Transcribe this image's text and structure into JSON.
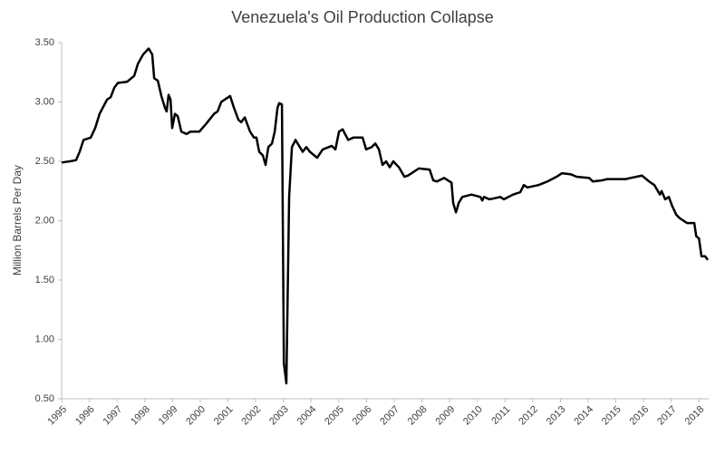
{
  "chart_data": {
    "type": "line",
    "title": "Venezuela's Oil Production Collapse",
    "y_label": "Million Barrels Per Day",
    "series": [
      {
        "color": "#000000",
        "x": [
          1995.0,
          1995.3,
          1995.52,
          1995.65,
          1995.79,
          1996.05,
          1996.21,
          1996.37,
          1996.64,
          1996.77,
          1996.9,
          1997.03,
          1997.36,
          1997.62,
          1997.75,
          1997.94,
          1998.14,
          1998.27,
          1998.34,
          1998.47,
          1998.6,
          1998.73,
          1998.79,
          1998.86,
          1998.93,
          1998.99,
          1999.09,
          1999.19,
          1999.32,
          1999.51,
          1999.65,
          1999.97,
          2000.23,
          2000.5,
          2000.63,
          2000.76,
          2000.95,
          2001.08,
          2001.22,
          2001.38,
          2001.48,
          2001.61,
          2001.8,
          2001.94,
          2002.03,
          2002.13,
          2002.26,
          2002.36,
          2002.46,
          2002.59,
          2002.69,
          2002.79,
          2002.85,
          2002.95,
          2003.02,
          2003.11,
          2003.21,
          2003.31,
          2003.44,
          2003.7,
          2003.83,
          2003.96,
          2004.22,
          2004.42,
          2004.75,
          2004.88,
          2005.01,
          2005.14,
          2005.34,
          2005.53,
          2005.86,
          2005.99,
          2006.19,
          2006.32,
          2006.45,
          2006.58,
          2006.71,
          2006.84,
          2006.97,
          2007.17,
          2007.37,
          2007.5,
          2007.89,
          2008.28,
          2008.41,
          2008.54,
          2008.8,
          2009.07,
          2009.13,
          2009.23,
          2009.33,
          2009.46,
          2009.79,
          2010.11,
          2010.18,
          2010.24,
          2010.44,
          2010.83,
          2010.96,
          2011.29,
          2011.55,
          2011.68,
          2011.81,
          2012.21,
          2012.53,
          2012.86,
          2013.06,
          2013.38,
          2013.58,
          2014.04,
          2014.17,
          2014.5,
          2014.69,
          2015.35,
          2015.54,
          2015.94,
          2016.2,
          2016.39,
          2016.59,
          2016.65,
          2016.78,
          2016.91,
          2017.04,
          2017.18,
          2017.31,
          2017.57,
          2017.83,
          2017.9,
          2018.0,
          2018.09,
          2018.22,
          2018.32
        ],
        "values": [
          2.49,
          2.5,
          2.51,
          2.58,
          2.68,
          2.7,
          2.78,
          2.9,
          3.02,
          3.04,
          3.12,
          3.16,
          3.17,
          3.22,
          3.32,
          3.4,
          3.45,
          3.4,
          3.2,
          3.18,
          3.05,
          2.95,
          2.92,
          3.06,
          3.02,
          2.78,
          2.9,
          2.88,
          2.75,
          2.73,
          2.75,
          2.75,
          2.82,
          2.9,
          2.92,
          3.0,
          3.03,
          3.05,
          2.95,
          2.85,
          2.83,
          2.87,
          2.75,
          2.7,
          2.7,
          2.58,
          2.55,
          2.47,
          2.62,
          2.65,
          2.75,
          2.95,
          2.99,
          2.98,
          0.8,
          0.63,
          2.2,
          2.62,
          2.68,
          2.58,
          2.62,
          2.58,
          2.53,
          2.6,
          2.63,
          2.6,
          2.75,
          2.77,
          2.68,
          2.7,
          2.7,
          2.6,
          2.62,
          2.65,
          2.6,
          2.47,
          2.5,
          2.45,
          2.5,
          2.45,
          2.37,
          2.38,
          2.44,
          2.43,
          2.34,
          2.33,
          2.36,
          2.32,
          2.15,
          2.07,
          2.15,
          2.2,
          2.22,
          2.2,
          2.17,
          2.2,
          2.18,
          2.2,
          2.18,
          2.22,
          2.24,
          2.3,
          2.28,
          2.3,
          2.33,
          2.37,
          2.4,
          2.39,
          2.37,
          2.36,
          2.33,
          2.34,
          2.35,
          2.35,
          2.36,
          2.38,
          2.33,
          2.3,
          2.22,
          2.25,
          2.18,
          2.2,
          2.12,
          2.05,
          2.02,
          1.98,
          1.98,
          1.87,
          1.85,
          1.7,
          1.7,
          1.67
        ]
      }
    ],
    "xlim": [
      1995,
      2018.35
    ],
    "xticks": [
      1995,
      1996,
      1997,
      1998,
      1999,
      2000,
      2001,
      2002,
      2003,
      2004,
      2005,
      2006,
      2007,
      2008,
      2009,
      2010,
      2011,
      2012,
      2013,
      2014,
      2015,
      2016,
      2017,
      2018
    ],
    "ylim": [
      0.5,
      3.5
    ],
    "yticks": [
      {
        "value": 0.5,
        "label": "0.50"
      },
      {
        "value": 1,
        "label": "1.00"
      },
      {
        "value": 1.5,
        "label": "1.50"
      },
      {
        "value": 2,
        "label": "2.00"
      },
      {
        "value": 2.5,
        "label": "2.50"
      },
      {
        "value": 3,
        "label": "3.00"
      },
      {
        "value": 3.5,
        "label": "3.50"
      }
    ],
    "grid": false
  }
}
